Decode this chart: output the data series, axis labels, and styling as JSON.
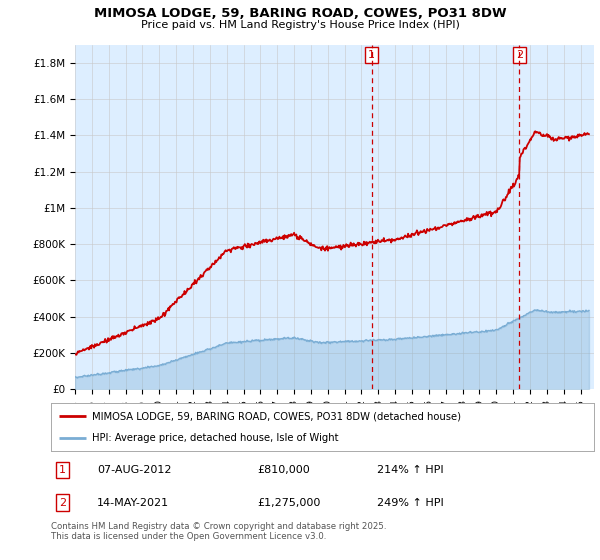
{
  "title": "MIMOSA LODGE, 59, BARING ROAD, COWES, PO31 8DW",
  "subtitle": "Price paid vs. HM Land Registry's House Price Index (HPI)",
  "ylim": [
    0,
    1900000
  ],
  "yticks": [
    0,
    200000,
    400000,
    600000,
    800000,
    1000000,
    1200000,
    1400000,
    1600000,
    1800000
  ],
  "ytick_labels": [
    "£0",
    "£200K",
    "£400K",
    "£600K",
    "£800K",
    "£1M",
    "£1.2M",
    "£1.4M",
    "£1.6M",
    "£1.8M"
  ],
  "xlim_start": 1995.0,
  "xlim_end": 2025.8,
  "sale1_x": 2012.6,
  "sale1_y": 810000,
  "sale2_x": 2021.37,
  "sale2_y": 1275000,
  "legend_line1": "MIMOSA LODGE, 59, BARING ROAD, COWES, PO31 8DW (detached house)",
  "legend_line2": "HPI: Average price, detached house, Isle of Wight",
  "footnote": "Contains HM Land Registry data © Crown copyright and database right 2025.\nThis data is licensed under the Open Government Licence v3.0.",
  "red_color": "#cc0000",
  "blue_color": "#7aadd4",
  "bg_color": "#ddeeff",
  "plot_bg": "#ffffff"
}
